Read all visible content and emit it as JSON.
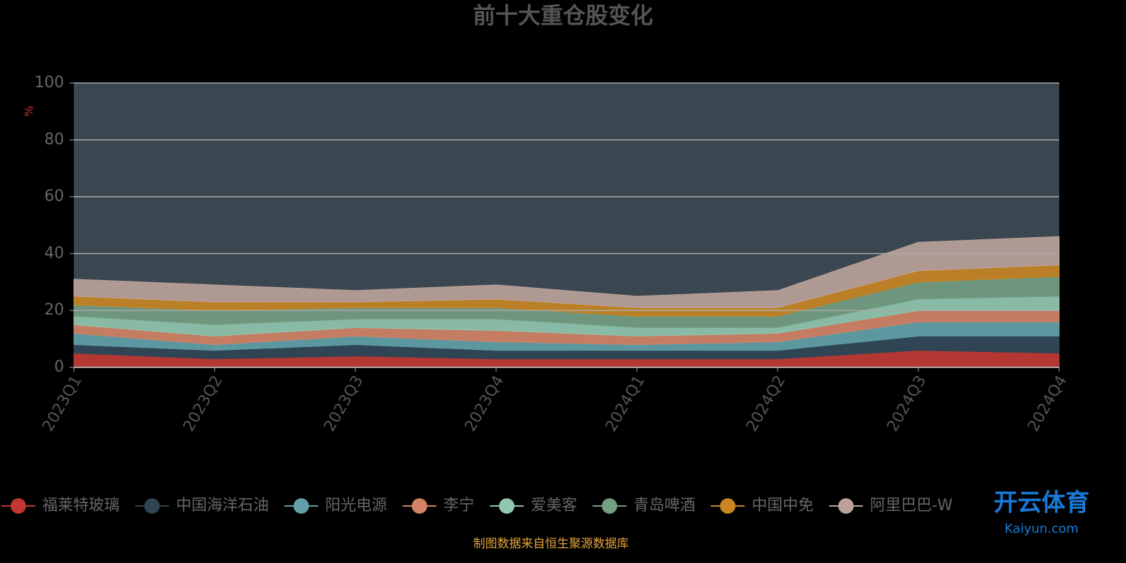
{
  "chart_data": {
    "type": "stacked-area",
    "title": "前十大重仓股变化",
    "y_label": "%",
    "categories": [
      "2023Q1",
      "2023Q2",
      "2023Q3",
      "2023Q4",
      "2024Q1",
      "2024Q2",
      "2024Q3",
      "2024Q4"
    ],
    "series": [
      {
        "name": "福莱特玻璃",
        "color": "#c23531",
        "values": [
          5,
          3,
          4,
          3,
          3,
          3,
          6,
          5
        ]
      },
      {
        "name": "中国海洋石油",
        "color": "#2f4554",
        "values": [
          3,
          3,
          4,
          3,
          3,
          3,
          5,
          6
        ]
      },
      {
        "name": "阳光电源",
        "color": "#61a0a8",
        "values": [
          4,
          2,
          3,
          3,
          2,
          3,
          5,
          5
        ]
      },
      {
        "name": "李宁",
        "color": "#d48265",
        "values": [
          3,
          3,
          3,
          4,
          3,
          3,
          4,
          4
        ]
      },
      {
        "name": "爱美客",
        "color": "#91c7ae",
        "values": [
          3,
          4,
          3,
          4,
          3,
          2,
          4,
          5
        ]
      },
      {
        "name": "青岛啤酒",
        "color": "#749f83",
        "values": [
          4,
          5,
          4,
          4,
          4,
          4,
          6,
          7
        ]
      },
      {
        "name": "中国中免",
        "color": "#ca8622",
        "values": [
          3,
          3,
          2,
          3,
          3,
          3,
          4,
          4
        ]
      },
      {
        "name": "阿里巴巴-W",
        "color": "#bda29a",
        "values": [
          6,
          6,
          4,
          5,
          4,
          6,
          10,
          10
        ]
      }
    ],
    "ylim": [
      0,
      100
    ],
    "yticks": [
      0,
      20,
      40,
      60,
      80,
      100
    ],
    "grid": true,
    "source": "制图数据来自恒生聚源数据库"
  },
  "watermark": {
    "brand": "开云体育",
    "site": "Kaiyun.com"
  }
}
